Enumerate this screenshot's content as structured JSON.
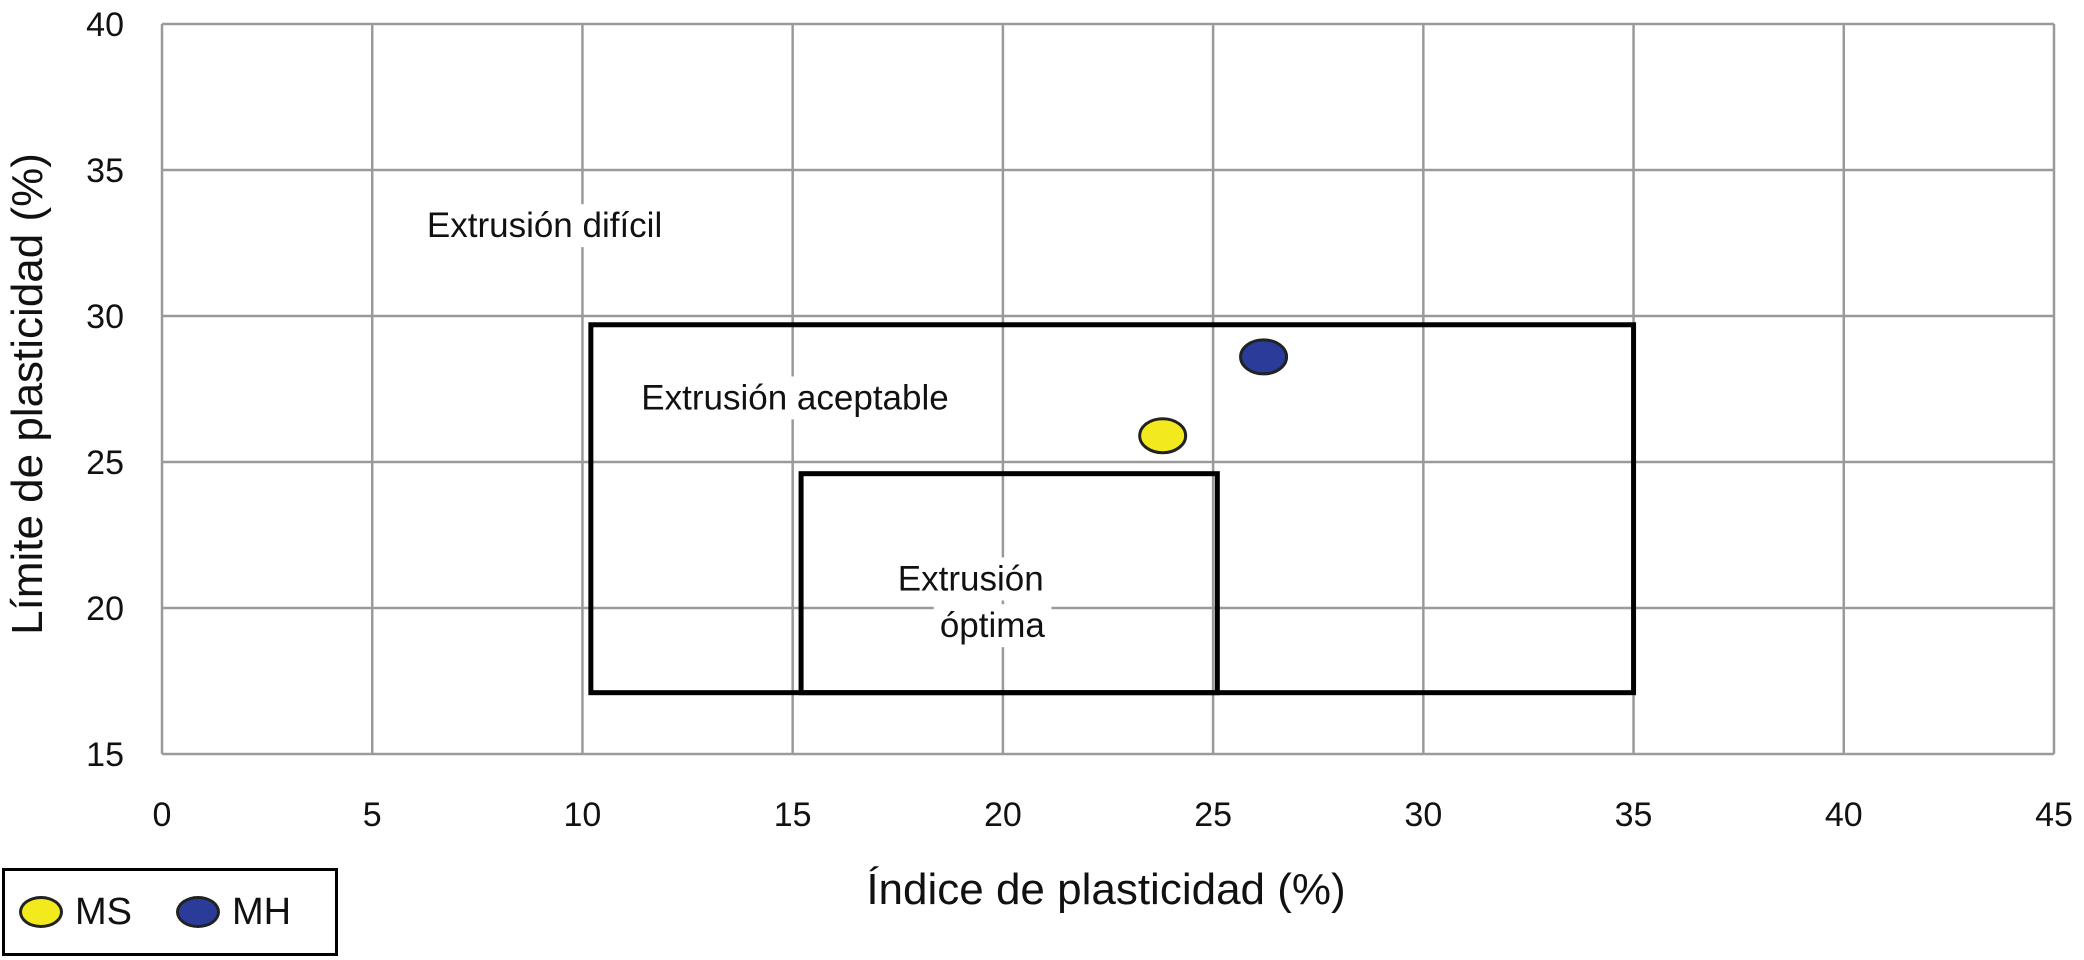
{
  "chart_data": {
    "type": "scatter",
    "xlabel": "Índice de plasticidad (%)",
    "ylabel": "Límite de plasticidad (%)",
    "xlim": [
      0,
      45
    ],
    "ylim": [
      15,
      40
    ],
    "xticks": [
      "0",
      "5",
      "10",
      "15",
      "20",
      "25",
      "30",
      "35",
      "40",
      "45"
    ],
    "yticks": [
      "15",
      "20",
      "25",
      "30",
      "35",
      "40"
    ],
    "grid": true,
    "legend_position": "bottom-left",
    "series": [
      {
        "name": "MS",
        "color": "#f2ea1d",
        "points": [
          {
            "x": 23.8,
            "y": 25.9
          }
        ]
      },
      {
        "name": "MH",
        "color": "#2b3b9a",
        "points": [
          {
            "x": 26.2,
            "y": 28.6
          }
        ]
      }
    ],
    "regions": [
      {
        "label": "Extrusión aceptable",
        "x": [
          10.2,
          35.0
        ],
        "y": [
          17.1,
          29.7
        ]
      },
      {
        "label": "Extrusión óptima",
        "x": [
          15.2,
          25.1
        ],
        "y": [
          17.1,
          24.6
        ]
      }
    ],
    "annotations": [
      {
        "text": "Extrusión difícil",
        "x": 6.3,
        "y": 32.7
      },
      {
        "text": "Extrusión aceptable",
        "x": 11.4,
        "y": 26.8
      },
      {
        "text": "Extrusión",
        "x": 17.5,
        "y": 20.6
      },
      {
        "text": "óptima",
        "x": 18.5,
        "y": 19.0
      }
    ]
  }
}
